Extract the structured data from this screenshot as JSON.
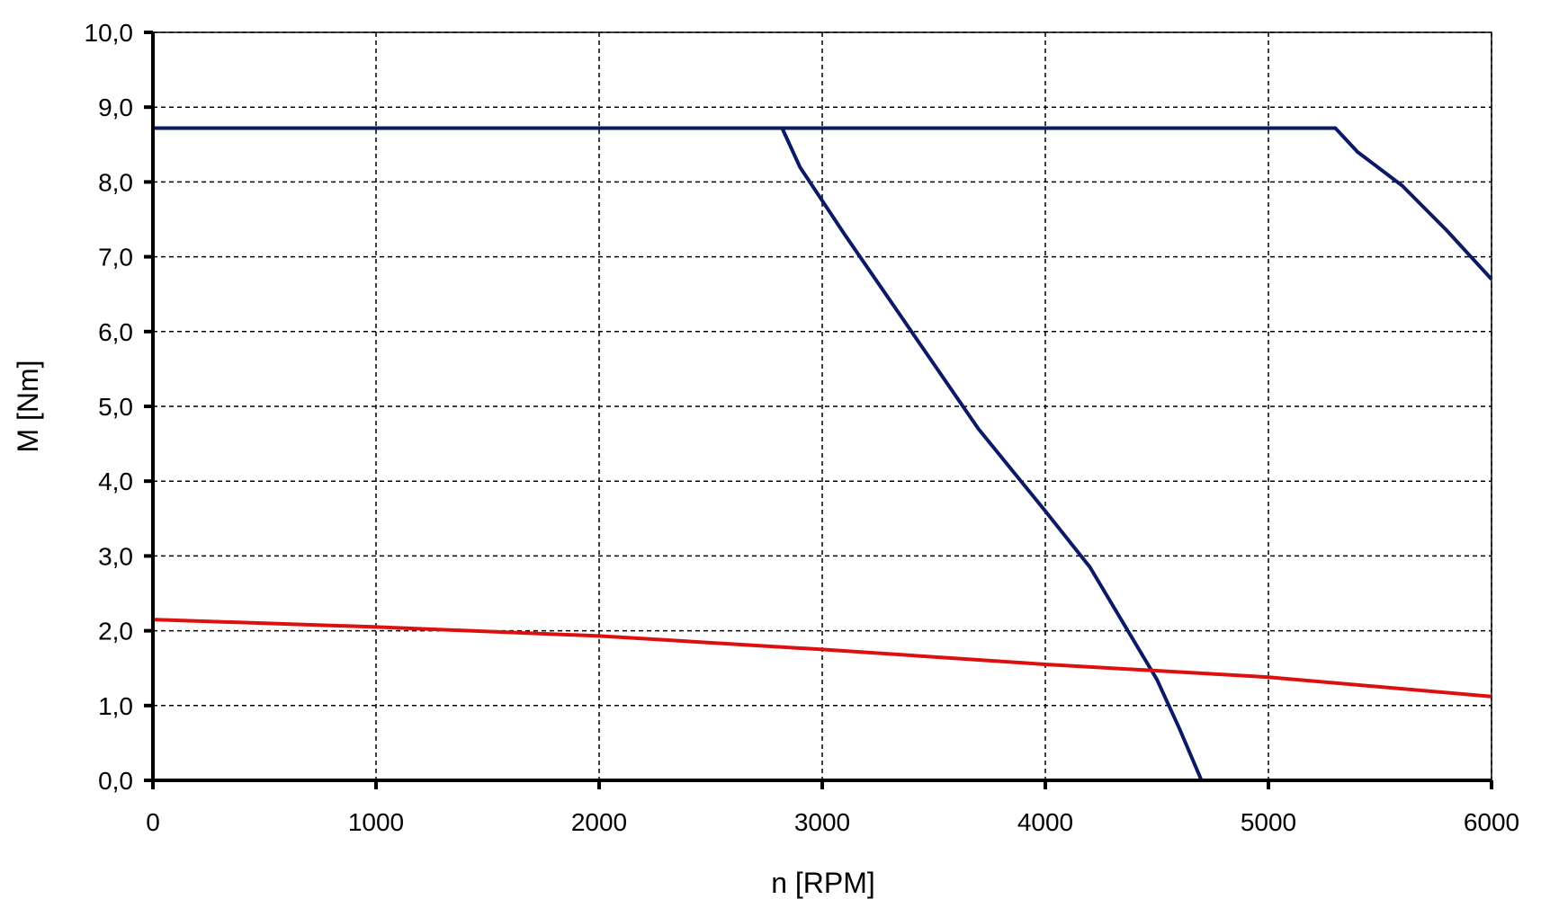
{
  "chart_data": {
    "type": "line",
    "xlabel": "n [RPM]",
    "ylabel": "M [Nm]",
    "xlim": [
      0,
      6000
    ],
    "ylim": [
      0,
      10
    ],
    "x_ticks": [
      0,
      1000,
      2000,
      3000,
      4000,
      5000,
      6000
    ],
    "x_tick_labels": [
      "0",
      "1000",
      "2000",
      "3000",
      "4000",
      "5000",
      "6000"
    ],
    "y_ticks": [
      0,
      1,
      2,
      3,
      4,
      5,
      6,
      7,
      8,
      9,
      10
    ],
    "y_tick_labels": [
      "0,0",
      "1,0",
      "2,0",
      "3,0",
      "4,0",
      "5,0",
      "6,0",
      "7,0",
      "8,0",
      "9,0",
      "10,0"
    ],
    "grid": true,
    "series": [
      {
        "color": "#0b1a66",
        "x": [
          0,
          5300,
          5400,
          5600,
          5800,
          6000
        ],
        "y": [
          8.72,
          8.72,
          8.4,
          7.95,
          7.35,
          6.7
        ]
      },
      {
        "color": "#0b1a66",
        "x": [
          2820,
          2900,
          3100,
          3400,
          3700,
          4000,
          4200,
          4400,
          4500,
          4600,
          4700
        ],
        "y": [
          8.72,
          8.2,
          7.3,
          6.0,
          4.7,
          3.6,
          2.85,
          1.85,
          1.35,
          0.7,
          0.0
        ]
      },
      {
        "color": "#dd1010",
        "x": [
          0,
          1000,
          2000,
          3000,
          4000,
          5000,
          6000
        ],
        "y": [
          2.15,
          2.05,
          1.93,
          1.75,
          1.55,
          1.38,
          1.12
        ]
      }
    ]
  }
}
